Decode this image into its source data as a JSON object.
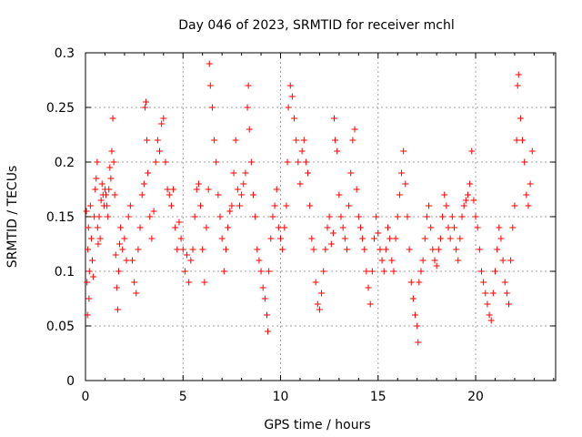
{
  "chart_data": {
    "type": "scatter",
    "title": "Day 046 of 2023, SRMTID for receiver mchl",
    "xlabel": "GPS time / hours",
    "ylabel": "SRMTID / TECUs",
    "xlim": [
      0,
      24.1
    ],
    "ylim": [
      0,
      0.3
    ],
    "xticks": [
      0,
      5,
      10,
      15,
      20
    ],
    "xtick_labels": [
      "0",
      "5",
      "10",
      "15",
      "20"
    ],
    "yticks": [
      0,
      0.05,
      0.1,
      0.15,
      0.2,
      0.25,
      0.3
    ],
    "ytick_labels": [
      "0",
      "0.05",
      "0.1",
      "0.15",
      "0.2",
      "0.25",
      "0.3"
    ],
    "grid": true,
    "marker": "+",
    "series": [
      {
        "name": "SRMTID",
        "color": "#ff0000",
        "points": [
          [
            0.05,
            0.155
          ],
          [
            0.08,
            0.09
          ],
          [
            0.1,
            0.06
          ],
          [
            0.12,
            0.12
          ],
          [
            0.15,
            0.14
          ],
          [
            0.18,
            0.075
          ],
          [
            0.2,
            0.1
          ],
          [
            0.25,
            0.16
          ],
          [
            0.3,
            0.13
          ],
          [
            0.35,
            0.11
          ],
          [
            0.4,
            0.095
          ],
          [
            0.45,
            0.15
          ],
          [
            0.5,
            0.175
          ],
          [
            0.55,
            0.185
          ],
          [
            0.6,
            0.2
          ],
          [
            0.62,
            0.14
          ],
          [
            0.65,
            0.125
          ],
          [
            0.7,
            0.15
          ],
          [
            0.75,
            0.13
          ],
          [
            0.8,
            0.165
          ],
          [
            0.85,
            0.18
          ],
          [
            0.9,
            0.17
          ],
          [
            0.95,
            0.16
          ],
          [
            1.0,
            0.175
          ],
          [
            1.05,
            0.17
          ],
          [
            1.1,
            0.16
          ],
          [
            1.15,
            0.15
          ],
          [
            1.2,
            0.175
          ],
          [
            1.25,
            0.195
          ],
          [
            1.3,
            0.185
          ],
          [
            1.35,
            0.21
          ],
          [
            1.4,
            0.24
          ],
          [
            1.45,
            0.2
          ],
          [
            1.5,
            0.17
          ],
          [
            1.55,
            0.115
          ],
          [
            1.6,
            0.085
          ],
          [
            1.65,
            0.065
          ],
          [
            1.7,
            0.1
          ],
          [
            1.75,
            0.125
          ],
          [
            1.8,
            0.14
          ],
          [
            1.9,
            0.12
          ],
          [
            2.0,
            0.13
          ],
          [
            2.1,
            0.11
          ],
          [
            2.2,
            0.15
          ],
          [
            2.3,
            0.16
          ],
          [
            2.4,
            0.11
          ],
          [
            2.5,
            0.09
          ],
          [
            2.6,
            0.08
          ],
          [
            2.7,
            0.12
          ],
          [
            2.8,
            0.14
          ],
          [
            2.9,
            0.17
          ],
          [
            3.0,
            0.18
          ],
          [
            3.05,
            0.25
          ],
          [
            3.1,
            0.255
          ],
          [
            3.15,
            0.22
          ],
          [
            3.2,
            0.19
          ],
          [
            3.3,
            0.15
          ],
          [
            3.4,
            0.13
          ],
          [
            3.5,
            0.155
          ],
          [
            3.6,
            0.2
          ],
          [
            3.7,
            0.22
          ],
          [
            3.8,
            0.21
          ],
          [
            3.9,
            0.235
          ],
          [
            4.0,
            0.24
          ],
          [
            4.1,
            0.2
          ],
          [
            4.2,
            0.175
          ],
          [
            4.3,
            0.17
          ],
          [
            4.4,
            0.16
          ],
          [
            4.5,
            0.175
          ],
          [
            4.6,
            0.14
          ],
          [
            4.7,
            0.12
          ],
          [
            4.8,
            0.145
          ],
          [
            4.9,
            0.13
          ],
          [
            5.0,
            0.12
          ],
          [
            5.1,
            0.1
          ],
          [
            5.2,
            0.115
          ],
          [
            5.3,
            0.09
          ],
          [
            5.4,
            0.11
          ],
          [
            5.5,
            0.12
          ],
          [
            5.6,
            0.15
          ],
          [
            5.7,
            0.175
          ],
          [
            5.8,
            0.18
          ],
          [
            5.9,
            0.16
          ],
          [
            6.0,
            0.12
          ],
          [
            6.1,
            0.09
          ],
          [
            6.2,
            0.14
          ],
          [
            6.3,
            0.175
          ],
          [
            6.35,
            0.29
          ],
          [
            6.4,
            0.27
          ],
          [
            6.5,
            0.25
          ],
          [
            6.6,
            0.22
          ],
          [
            6.7,
            0.2
          ],
          [
            6.8,
            0.17
          ],
          [
            6.9,
            0.15
          ],
          [
            7.0,
            0.13
          ],
          [
            7.1,
            0.1
          ],
          [
            7.2,
            0.12
          ],
          [
            7.3,
            0.14
          ],
          [
            7.4,
            0.155
          ],
          [
            7.5,
            0.16
          ],
          [
            7.6,
            0.19
          ],
          [
            7.7,
            0.22
          ],
          [
            7.8,
            0.175
          ],
          [
            7.9,
            0.16
          ],
          [
            8.0,
            0.17
          ],
          [
            8.1,
            0.18
          ],
          [
            8.2,
            0.19
          ],
          [
            8.3,
            0.25
          ],
          [
            8.35,
            0.27
          ],
          [
            8.4,
            0.23
          ],
          [
            8.5,
            0.2
          ],
          [
            8.6,
            0.17
          ],
          [
            8.7,
            0.15
          ],
          [
            8.8,
            0.12
          ],
          [
            8.9,
            0.11
          ],
          [
            9.0,
            0.1
          ],
          [
            9.1,
            0.085
          ],
          [
            9.2,
            0.075
          ],
          [
            9.3,
            0.06
          ],
          [
            9.35,
            0.045
          ],
          [
            9.4,
            0.1
          ],
          [
            9.5,
            0.13
          ],
          [
            9.6,
            0.15
          ],
          [
            9.7,
            0.16
          ],
          [
            9.8,
            0.175
          ],
          [
            9.9,
            0.14
          ],
          [
            10.0,
            0.13
          ],
          [
            10.1,
            0.12
          ],
          [
            10.2,
            0.14
          ],
          [
            10.3,
            0.16
          ],
          [
            10.35,
            0.2
          ],
          [
            10.4,
            0.25
          ],
          [
            10.5,
            0.27
          ],
          [
            10.6,
            0.26
          ],
          [
            10.7,
            0.24
          ],
          [
            10.8,
            0.22
          ],
          [
            10.9,
            0.2
          ],
          [
            11.0,
            0.18
          ],
          [
            11.1,
            0.21
          ],
          [
            11.2,
            0.22
          ],
          [
            11.3,
            0.2
          ],
          [
            11.4,
            0.19
          ],
          [
            11.5,
            0.16
          ],
          [
            11.6,
            0.13
          ],
          [
            11.7,
            0.12
          ],
          [
            11.8,
            0.09
          ],
          [
            11.9,
            0.07
          ],
          [
            12.0,
            0.065
          ],
          [
            12.1,
            0.08
          ],
          [
            12.2,
            0.1
          ],
          [
            12.3,
            0.12
          ],
          [
            12.4,
            0.14
          ],
          [
            12.5,
            0.15
          ],
          [
            12.6,
            0.125
          ],
          [
            12.7,
            0.135
          ],
          [
            12.75,
            0.24
          ],
          [
            12.8,
            0.22
          ],
          [
            12.9,
            0.21
          ],
          [
            13.0,
            0.17
          ],
          [
            13.1,
            0.15
          ],
          [
            13.2,
            0.14
          ],
          [
            13.3,
            0.13
          ],
          [
            13.4,
            0.12
          ],
          [
            13.5,
            0.16
          ],
          [
            13.6,
            0.19
          ],
          [
            13.7,
            0.22
          ],
          [
            13.8,
            0.23
          ],
          [
            13.9,
            0.175
          ],
          [
            14.0,
            0.15
          ],
          [
            14.1,
            0.14
          ],
          [
            14.2,
            0.13
          ],
          [
            14.3,
            0.12
          ],
          [
            14.4,
            0.1
          ],
          [
            14.5,
            0.085
          ],
          [
            14.6,
            0.07
          ],
          [
            14.7,
            0.1
          ],
          [
            14.8,
            0.13
          ],
          [
            14.9,
            0.15
          ],
          [
            15.0,
            0.135
          ],
          [
            15.1,
            0.12
          ],
          [
            15.2,
            0.11
          ],
          [
            15.3,
            0.1
          ],
          [
            15.4,
            0.12
          ],
          [
            15.5,
            0.14
          ],
          [
            15.6,
            0.13
          ],
          [
            15.7,
            0.11
          ],
          [
            15.8,
            0.1
          ],
          [
            15.9,
            0.13
          ],
          [
            16.0,
            0.15
          ],
          [
            16.1,
            0.17
          ],
          [
            16.2,
            0.19
          ],
          [
            16.3,
            0.21
          ],
          [
            16.4,
            0.18
          ],
          [
            16.5,
            0.15
          ],
          [
            16.6,
            0.12
          ],
          [
            16.7,
            0.09
          ],
          [
            16.8,
            0.075
          ],
          [
            16.9,
            0.06
          ],
          [
            17.0,
            0.05
          ],
          [
            17.05,
            0.035
          ],
          [
            17.1,
            0.09
          ],
          [
            17.2,
            0.1
          ],
          [
            17.3,
            0.11
          ],
          [
            17.4,
            0.13
          ],
          [
            17.5,
            0.15
          ],
          [
            17.6,
            0.16
          ],
          [
            17.7,
            0.14
          ],
          [
            17.8,
            0.12
          ],
          [
            17.9,
            0.11
          ],
          [
            18.0,
            0.105
          ],
          [
            18.1,
            0.12
          ],
          [
            18.2,
            0.13
          ],
          [
            18.3,
            0.15
          ],
          [
            18.4,
            0.17
          ],
          [
            18.5,
            0.16
          ],
          [
            18.6,
            0.14
          ],
          [
            18.7,
            0.13
          ],
          [
            18.8,
            0.15
          ],
          [
            18.9,
            0.14
          ],
          [
            19.0,
            0.12
          ],
          [
            19.1,
            0.11
          ],
          [
            19.2,
            0.13
          ],
          [
            19.3,
            0.15
          ],
          [
            19.4,
            0.16
          ],
          [
            19.5,
            0.165
          ],
          [
            19.6,
            0.17
          ],
          [
            19.7,
            0.18
          ],
          [
            19.8,
            0.21
          ],
          [
            19.9,
            0.165
          ],
          [
            20.0,
            0.15
          ],
          [
            20.1,
            0.14
          ],
          [
            20.2,
            0.12
          ],
          [
            20.3,
            0.1
          ],
          [
            20.4,
            0.09
          ],
          [
            20.5,
            0.08
          ],
          [
            20.6,
            0.07
          ],
          [
            20.7,
            0.06
          ],
          [
            20.8,
            0.055
          ],
          [
            20.9,
            0.08
          ],
          [
            21.0,
            0.1
          ],
          [
            21.1,
            0.12
          ],
          [
            21.2,
            0.14
          ],
          [
            21.3,
            0.13
          ],
          [
            21.4,
            0.11
          ],
          [
            21.5,
            0.09
          ],
          [
            21.6,
            0.08
          ],
          [
            21.7,
            0.07
          ],
          [
            21.8,
            0.11
          ],
          [
            21.9,
            0.14
          ],
          [
            22.0,
            0.16
          ],
          [
            22.1,
            0.22
          ],
          [
            22.15,
            0.27
          ],
          [
            22.2,
            0.28
          ],
          [
            22.3,
            0.24
          ],
          [
            22.4,
            0.22
          ],
          [
            22.5,
            0.2
          ],
          [
            22.6,
            0.17
          ],
          [
            22.7,
            0.16
          ],
          [
            22.8,
            0.18
          ],
          [
            22.9,
            0.21
          ]
        ]
      }
    ]
  }
}
